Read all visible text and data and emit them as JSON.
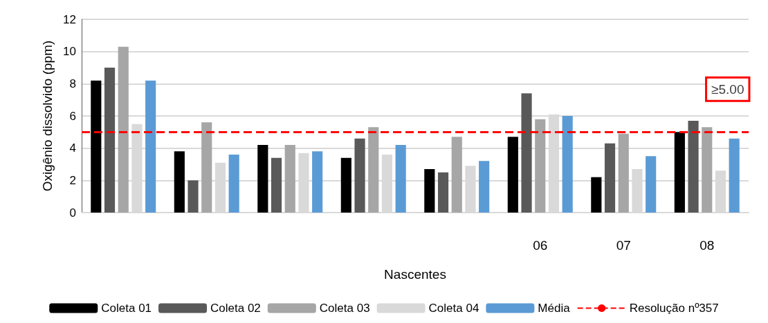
{
  "chart_data": {
    "type": "bar",
    "xlabel": "Nascentes",
    "ylabel": "Oxigênio dissolvido (ppm)",
    "categories": [
      null,
      null,
      null,
      null,
      null,
      "06",
      "07",
      "08"
    ],
    "series": [
      {
        "name": "Coleta 01",
        "color": "#000000",
        "values": [
          8.2,
          3.8,
          4.2,
          3.4,
          2.7,
          4.7,
          2.2,
          5.0
        ]
      },
      {
        "name": "Coleta 02",
        "color": "#595959",
        "values": [
          9.0,
          2.0,
          3.4,
          4.6,
          2.5,
          7.4,
          4.3,
          5.7
        ]
      },
      {
        "name": "Coleta 03",
        "color": "#a6a6a6",
        "values": [
          10.3,
          5.6,
          4.2,
          5.3,
          4.7,
          5.8,
          4.9,
          5.3
        ]
      },
      {
        "name": "Coleta 04",
        "color": "#d9d9d9",
        "values": [
          5.5,
          3.1,
          3.7,
          3.6,
          2.9,
          6.1,
          2.7,
          2.6
        ]
      },
      {
        "name": "Média",
        "color": "#5b9bd5",
        "values": [
          8.2,
          3.6,
          3.8,
          4.2,
          3.2,
          6.0,
          3.5,
          4.6
        ]
      }
    ],
    "ref_lines": [
      {
        "axis": "y",
        "value": 5,
        "label": "Resolução nº357",
        "color": "#ff0000",
        "line_style": "dashed"
      }
    ],
    "annotations": [
      {
        "text": "≥5.00",
        "x": "08",
        "y": 5
      }
    ],
    "ylim": [
      0,
      12
    ],
    "yticks": [
      0,
      2,
      4,
      6,
      8,
      10,
      12
    ],
    "grid": "y",
    "legend": "bottom"
  }
}
